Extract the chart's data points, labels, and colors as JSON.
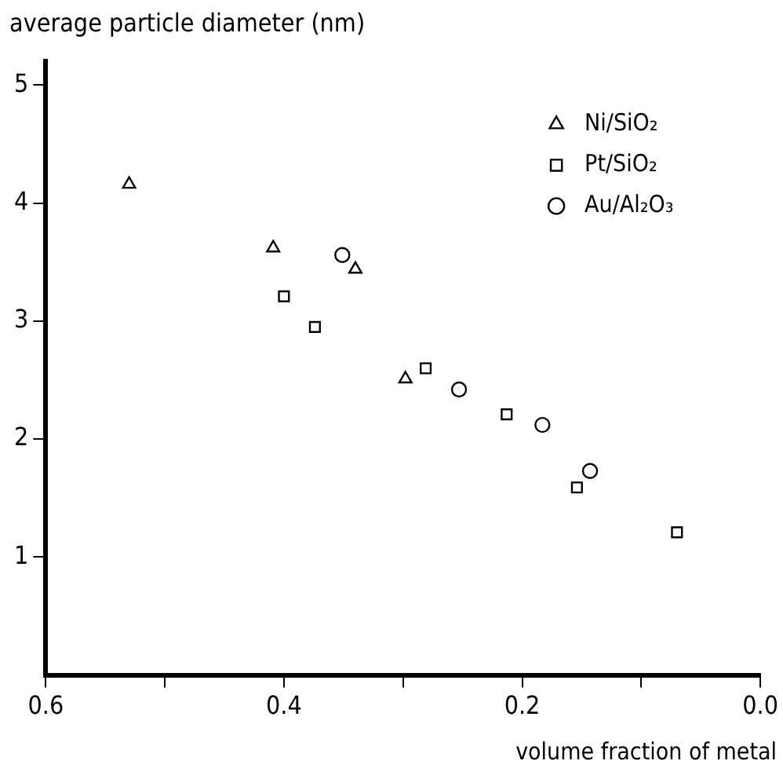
{
  "chart_data": {
    "type": "scatter",
    "xlabel": "volume fraction of metal",
    "ylabel": "average particle diameter (nm)",
    "xlim": [
      0.6,
      0
    ],
    "xticks": [
      0.6,
      {
        "value": 0.5,
        "label": null
      },
      0.4,
      {
        "value": 0.3,
        "label": null
      },
      0.2,
      {
        "value": 0.1,
        "label": null
      },
      {
        "value": 0,
        "label": "0.0"
      }
    ],
    "ylim": [
      0,
      5.2
    ],
    "yticks": [
      1,
      2,
      3,
      4,
      5
    ],
    "grid": false,
    "legend": "top right",
    "series": [
      {
        "name": "Ni/SiO₂",
        "color": "#000000",
        "marker": "triangle",
        "x": [
          0.53,
          0.409,
          0.34,
          0.298
        ],
        "values": [
          4.16,
          3.62,
          3.44,
          2.51
        ]
      },
      {
        "name": "Pt/SiO₂",
        "color": "#000000",
        "marker": "square",
        "x": [
          0.4,
          0.374,
          0.281,
          0.213,
          0.154,
          0.07
        ],
        "values": [
          3.21,
          2.95,
          2.6,
          2.21,
          1.59,
          1.21
        ]
      },
      {
        "name": "Au/Al₂O₃",
        "color": "#000000",
        "marker": "circle",
        "x": [
          0.351,
          0.253,
          0.183,
          0.143
        ],
        "values": [
          3.56,
          2.42,
          2.12,
          1.73
        ]
      }
    ]
  }
}
